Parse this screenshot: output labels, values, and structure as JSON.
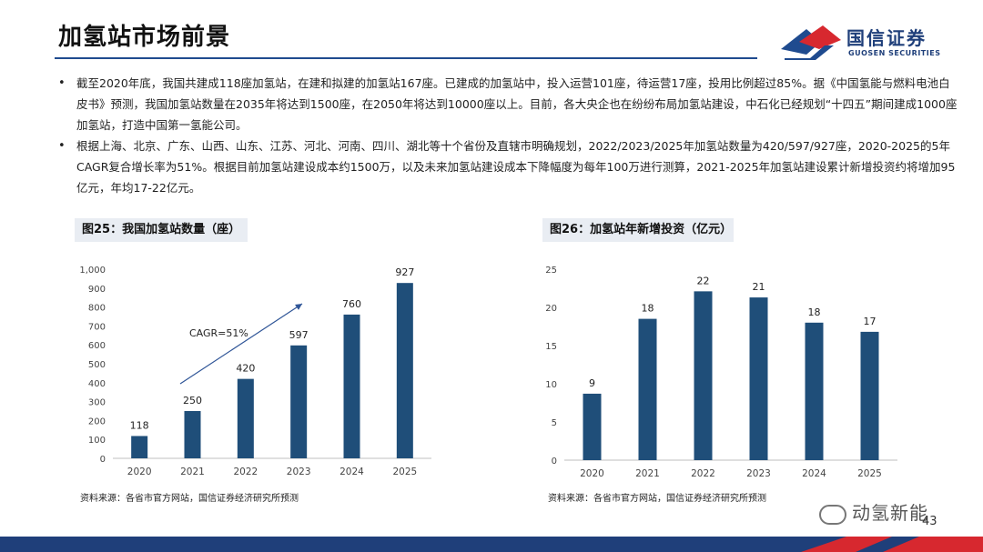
{
  "header": {
    "title": "加氢站市场前景",
    "logo_cn": "国信证券",
    "logo_en": "GUOSEN SECURITIES"
  },
  "bullets": [
    "截至2020年底，我国共建成118座加氢站，在建和拟建的加氢站167座。已建成的加氢站中，投入运营101座，待运营17座，投用比例超过85%。据《中国氢能与燃料电池白皮书》预测，我国加氢站数量在2035年将达到1500座，在2050年将达到10000座以上。目前，各大央企也在纷纷布局加氢站建设，中石化已经规划“十四五”期间建成1000座加氢站，打造中国第一氢能公司。",
    "根据上海、北京、广东、山西、山东、江苏、河北、河南、四川、湖北等十个省份及直辖市明确规划，2022/2023/2025年加氢站数量为420/597/927座，2020-2025的5年CAGR复合增长率为51%。根据目前加氢站建设成本约1500万，以及未来加氢站建设成本下降幅度为每年100万进行测算，2021-2025年加氢站建设累计新增投资约将增加95亿元，年均17-22亿元。"
  ],
  "figures": {
    "left_caption": "图25：我国加氢站数量（座）",
    "right_caption": "图26：加氢站年新增投资（亿元）",
    "left_source": "资料来源：各省市官方网站，国信证券经济研究所预测",
    "right_source": "资料来源：各省市官方网站，国信证券经济研究所预测"
  },
  "chart_data": [
    {
      "type": "bar",
      "title": "图25：我国加氢站数量（座）",
      "categories": [
        "2020",
        "2021",
        "2022",
        "2023",
        "2024",
        "2025"
      ],
      "values": [
        118,
        250,
        420,
        597,
        760,
        927
      ],
      "labels": [
        "118",
        "250",
        "420",
        "597",
        "760",
        "927"
      ],
      "yticks": [
        "0",
        "100",
        "200",
        "300",
        "400",
        "500",
        "600",
        "700",
        "800",
        "900",
        "1,000"
      ],
      "ylim": [
        0,
        1000
      ],
      "annotation": "CAGR=51%",
      "color": "#1f4e79"
    },
    {
      "type": "bar",
      "title": "图26：加氢站年新增投资（亿元）",
      "categories": [
        "2020",
        "2021",
        "2022",
        "2023",
        "2024",
        "2025"
      ],
      "values": [
        8.7,
        18.5,
        22.1,
        21.3,
        18,
        16.8
      ],
      "labels": [
        "9",
        "18",
        "22",
        "21",
        "18",
        "17"
      ],
      "yticks": [
        "0",
        "5",
        "10",
        "15",
        "20",
        "25"
      ],
      "ylim": [
        0,
        25
      ],
      "color": "#1f4e79"
    }
  ],
  "footer": {
    "page_number": "43",
    "watermark": "动氢新能"
  },
  "colors": {
    "brand_blue": "#1f4b8f",
    "brand_red": "#d7282f",
    "bar": "#1f4e79"
  }
}
